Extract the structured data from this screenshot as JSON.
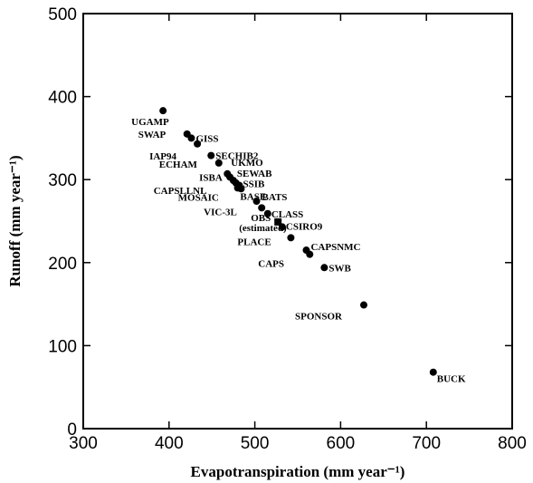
{
  "chart_data": {
    "type": "scatter",
    "xlabel": "Evapotranspiration (mm year⁻¹)",
    "ylabel": "Runoff (mm year⁻¹)",
    "xlim": [
      300,
      800
    ],
    "ylim": [
      0,
      500
    ],
    "xticks": [
      300,
      400,
      500,
      600,
      700,
      800
    ],
    "yticks": [
      0,
      100,
      200,
      300,
      400,
      500
    ],
    "grid": false,
    "points": [
      {
        "label": "UGAMP",
        "x": 393,
        "y": 383,
        "marker": "circle"
      },
      {
        "label": "SWAP",
        "x": 421,
        "y": 355,
        "marker": "circle"
      },
      {
        "label": "GISS",
        "x": 426,
        "y": 350,
        "marker": "circle"
      },
      {
        "label": "IAP94",
        "x": 433,
        "y": 343,
        "marker": "circle"
      },
      {
        "label": "SECHIB2",
        "x": 449,
        "y": 329,
        "marker": "circle"
      },
      {
        "label": "ECHAM",
        "x": 458,
        "y": 320,
        "marker": "circle"
      },
      {
        "label": "UKMO",
        "x": 468,
        "y": 307,
        "marker": "circle"
      },
      {
        "label": "ISBA",
        "x": 471,
        "y": 303,
        "marker": "circle"
      },
      {
        "label": "SEWAB",
        "x": 475,
        "y": 299,
        "marker": "circle"
      },
      {
        "label": "CAPSLLNL",
        "x": 478,
        "y": 296,
        "marker": "circle"
      },
      {
        "label": "SSIB",
        "x": 482,
        "y": 293,
        "marker": "circle"
      },
      {
        "label": "MOSAIC",
        "x": 480,
        "y": 290,
        "marker": "circle"
      },
      {
        "label": "BASE",
        "x": 484,
        "y": 289,
        "marker": "circle"
      },
      {
        "label": "BATS",
        "x": 502,
        "y": 274,
        "marker": "circle"
      },
      {
        "label": "VIC-3L",
        "x": 508,
        "y": 266,
        "marker": "circle"
      },
      {
        "label": "CLASS",
        "x": 515,
        "y": 259,
        "marker": "circle"
      },
      {
        "label": "OBS\n(estimated)",
        "x": 527,
        "y": 249,
        "marker": "square"
      },
      {
        "label": "CSIRO9",
        "x": 532,
        "y": 243,
        "marker": "circle"
      },
      {
        "label": "PLACE",
        "x": 542,
        "y": 230,
        "marker": "circle"
      },
      {
        "label": "CAPSNMC",
        "x": 560,
        "y": 215,
        "marker": "circle"
      },
      {
        "label": "CAPS",
        "x": 564,
        "y": 210,
        "marker": "circle"
      },
      {
        "label": "SWB",
        "x": 581,
        "y": 194,
        "marker": "circle"
      },
      {
        "label": "SPONSOR",
        "x": 627,
        "y": 149,
        "marker": "circle"
      },
      {
        "label": "BUCK",
        "x": 708,
        "y": 68,
        "marker": "circle"
      }
    ]
  }
}
